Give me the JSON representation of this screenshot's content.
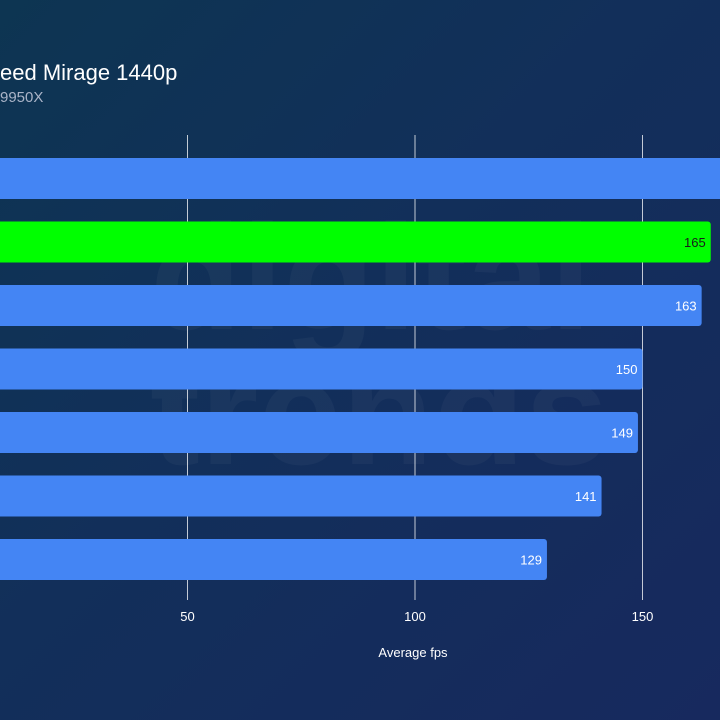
{
  "chart_data": {
    "type": "bar",
    "orientation": "horizontal",
    "title": "eed Mirage 1440p",
    "subtitle": "9950X",
    "xlabel": "Average fps",
    "ylabel": "",
    "xlim": [
      0,
      200
    ],
    "xticks": [
      50,
      100,
      150
    ],
    "grid": true,
    "colors": {
      "bar": "#4485f4",
      "highlight": "#00ff00",
      "grid": "#ffffff"
    },
    "watermark": "digital trends",
    "series": [
      {
        "values": [
          170,
          165,
          163,
          150,
          149,
          141,
          129
        ],
        "labels": [
          "",
          "165",
          "163",
          "150",
          "149",
          "141",
          "129"
        ],
        "highlight": [
          false,
          true,
          false,
          false,
          false,
          false,
          false
        ]
      }
    ]
  }
}
